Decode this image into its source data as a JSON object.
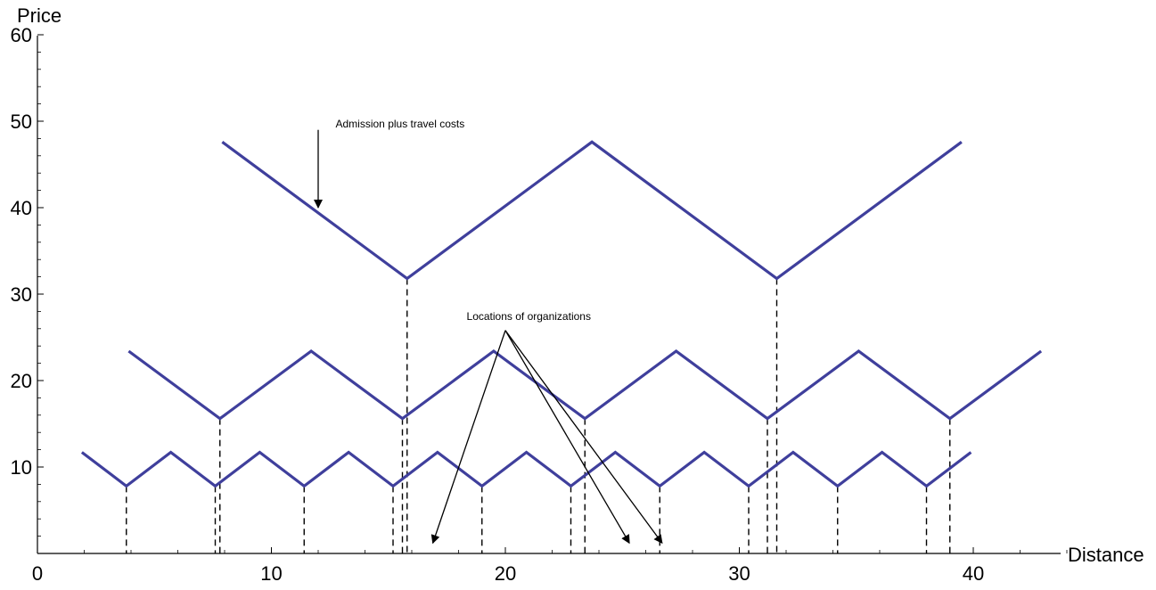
{
  "chart_data": {
    "type": "line",
    "xlabel": "Distance",
    "ylabel": "Price",
    "xlim": [
      0,
      44
    ],
    "ylim": [
      0,
      60
    ],
    "xticks": [
      0,
      10,
      20,
      30,
      40
    ],
    "yticks": [
      10,
      20,
      30,
      40,
      50,
      60
    ],
    "line_color": "#3f3f9c",
    "series": [
      {
        "x": [
          7.9,
          15.8,
          23.7,
          31.6,
          39.5
        ],
        "y": [
          47.6,
          31.8,
          47.6,
          31.8,
          47.6
        ]
      },
      {
        "x": [
          3.9,
          7.8,
          11.7,
          15.6,
          19.5,
          23.4,
          27.3,
          31.2,
          35.1,
          39.0,
          42.9
        ],
        "y": [
          23.4,
          15.6,
          23.4,
          15.6,
          23.4,
          15.6,
          23.4,
          15.6,
          23.4,
          15.6,
          23.4
        ]
      },
      {
        "x": [
          1.9,
          3.8,
          5.7,
          7.6,
          9.5,
          11.4,
          13.3,
          15.2,
          17.1,
          19.0,
          20.9,
          22.8,
          24.7,
          26.6,
          28.5,
          30.4,
          32.3,
          34.2,
          36.1,
          38.0,
          39.9
        ],
        "y": [
          11.7,
          7.8,
          11.7,
          7.8,
          11.7,
          7.8,
          11.7,
          7.8,
          11.7,
          7.8,
          11.7,
          7.8,
          11.7,
          7.8,
          11.7,
          7.8,
          11.7,
          7.8,
          11.7,
          7.8,
          11.7
        ]
      }
    ],
    "annotations": [
      {
        "text": "Admission plus travel costs",
        "text_at": [
          15.5,
          49.3
        ],
        "arrow_from": [
          12.0,
          49.0
        ],
        "arrows_to": [
          [
            12.0,
            40.0
          ]
        ]
      },
      {
        "text": "Locations of organizations",
        "text_at": [
          21.0,
          27.0
        ],
        "arrow_from": [
          20.0,
          25.8
        ],
        "arrows_to": [
          [
            16.9,
            1.2
          ],
          [
            25.3,
            1.2
          ],
          [
            26.7,
            1.2
          ]
        ]
      }
    ]
  }
}
